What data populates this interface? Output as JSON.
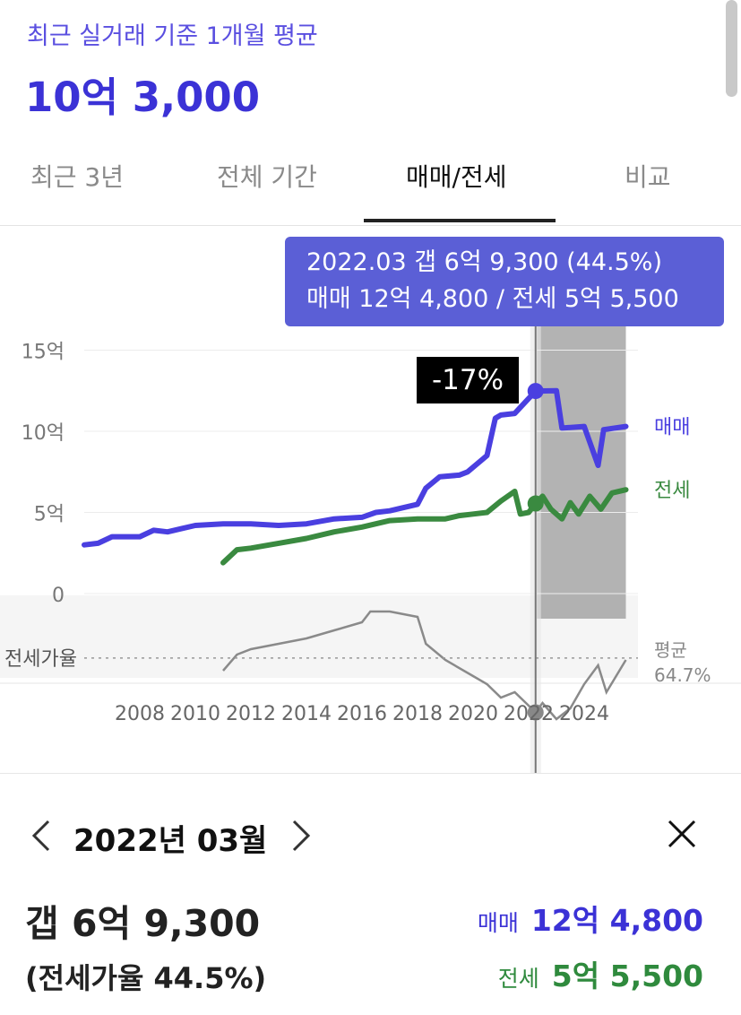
{
  "header": {
    "subtitle": "최근 실거래 기준 1개월 평균",
    "price": "10억 3,000"
  },
  "tabs": [
    {
      "label": "최근 3년",
      "active": false
    },
    {
      "label": "전체 기간",
      "active": false
    },
    {
      "label": "매매/전세",
      "active": true
    },
    {
      "label": "비교",
      "active": false
    }
  ],
  "tooltip": {
    "line1": "2022.03  갭 6억 9,300 (44.5%)",
    "line2": "매매 12억 4,800 / 전세 5억 5,500"
  },
  "change_badge": "-17%",
  "chart_data": {
    "type": "line",
    "y_unit_note": "억",
    "y_ticks": [
      "15억",
      "10억",
      "5억",
      "0"
    ],
    "y_tick_values": [
      15,
      10,
      5,
      0
    ],
    "x_ticks": [
      "2008",
      "2010",
      "2012",
      "2014",
      "2016",
      "2018",
      "2020",
      "2022",
      "2024"
    ],
    "ylim": [
      0,
      15
    ],
    "series": [
      {
        "name": "매매",
        "color": "#4a3fe0",
        "points": [
          [
            2006.0,
            3.0
          ],
          [
            2006.5,
            3.1
          ],
          [
            2007.0,
            3.5
          ],
          [
            2008.0,
            3.5
          ],
          [
            2008.5,
            3.9
          ],
          [
            2009.0,
            3.8
          ],
          [
            2009.5,
            4.0
          ],
          [
            2010.0,
            4.2
          ],
          [
            2011.0,
            4.3
          ],
          [
            2012.0,
            4.3
          ],
          [
            2013.0,
            4.2
          ],
          [
            2014.0,
            4.3
          ],
          [
            2015.0,
            4.6
          ],
          [
            2016.0,
            4.7
          ],
          [
            2016.5,
            5.0
          ],
          [
            2017.0,
            5.1
          ],
          [
            2018.0,
            5.5
          ],
          [
            2018.3,
            6.5
          ],
          [
            2018.8,
            7.2
          ],
          [
            2019.5,
            7.3
          ],
          [
            2019.8,
            7.5
          ],
          [
            2020.5,
            8.5
          ],
          [
            2020.8,
            10.8
          ],
          [
            2021.0,
            11.0
          ],
          [
            2021.5,
            11.1
          ],
          [
            2022.25,
            12.48
          ],
          [
            2023.0,
            12.5
          ],
          [
            2023.2,
            10.2
          ],
          [
            2024.0,
            10.3
          ],
          [
            2024.5,
            7.9
          ],
          [
            2024.7,
            10.1
          ],
          [
            2025.5,
            10.3
          ]
        ]
      },
      {
        "name": "전세",
        "color": "#3a8a40",
        "points": [
          [
            2011.0,
            1.9
          ],
          [
            2011.5,
            2.7
          ],
          [
            2012.0,
            2.8
          ],
          [
            2013.0,
            3.1
          ],
          [
            2014.0,
            3.4
          ],
          [
            2015.0,
            3.8
          ],
          [
            2016.0,
            4.1
          ],
          [
            2017.0,
            4.5
          ],
          [
            2018.0,
            4.6
          ],
          [
            2019.0,
            4.6
          ],
          [
            2019.5,
            4.8
          ],
          [
            2020.0,
            4.9
          ],
          [
            2020.5,
            5.0
          ],
          [
            2021.0,
            5.7
          ],
          [
            2021.5,
            6.3
          ],
          [
            2021.7,
            4.9
          ],
          [
            2022.0,
            5.0
          ],
          [
            2022.25,
            5.55
          ],
          [
            2022.5,
            6.0
          ],
          [
            2022.8,
            5.2
          ],
          [
            2023.2,
            4.6
          ],
          [
            2023.5,
            5.6
          ],
          [
            2023.8,
            4.9
          ],
          [
            2024.2,
            6.0
          ],
          [
            2024.6,
            5.2
          ],
          [
            2025.0,
            6.2
          ],
          [
            2025.5,
            6.4
          ]
        ]
      }
    ],
    "ratio_band": {
      "label": "전세가율",
      "avg_label": "평균",
      "avg_value": "64.7%",
      "points": [
        [
          2011.0,
          60
        ],
        [
          2011.5,
          66
        ],
        [
          2012.0,
          68
        ],
        [
          2013.0,
          70
        ],
        [
          2014.0,
          72
        ],
        [
          2015.0,
          75
        ],
        [
          2016.0,
          78
        ],
        [
          2016.3,
          82
        ],
        [
          2017.0,
          82
        ],
        [
          2018.0,
          80
        ],
        [
          2018.3,
          70
        ],
        [
          2019.0,
          64
        ],
        [
          2020.0,
          58
        ],
        [
          2020.5,
          55
        ],
        [
          2021.0,
          50
        ],
        [
          2021.5,
          52
        ],
        [
          2022.25,
          44.5
        ],
        [
          2022.5,
          48
        ],
        [
          2023.0,
          42
        ],
        [
          2023.5,
          46
        ],
        [
          2024.0,
          55
        ],
        [
          2024.5,
          62
        ],
        [
          2024.8,
          52
        ],
        [
          2025.5,
          64
        ]
      ]
    },
    "selected": {
      "x": 2022.25,
      "label": "2022.03"
    },
    "shaded_range": [
      2022.3,
      2025.5
    ]
  },
  "detail": {
    "date": "2022년 03월",
    "gap": "갭 6억 9,300",
    "ratio": "(전세가율 44.5%)",
    "sale_label": "매매",
    "sale_value": "12억 4,800",
    "jeonse_label": "전세",
    "jeonse_value": "5억 5,500"
  }
}
